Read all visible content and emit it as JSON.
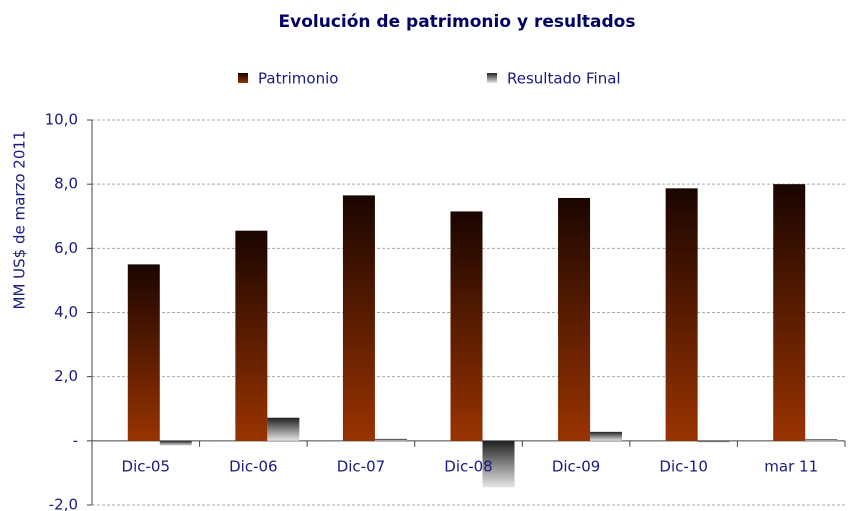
{
  "chart_data": {
    "type": "bar",
    "title": "Evolución de patrimonio y resultados",
    "y_label": "MM US$ de marzo 2011",
    "categories": [
      "Dic-05",
      "Dic-06",
      "Dic-07",
      "Dic-08",
      "Dic-09",
      "Dic-10",
      "mar 11"
    ],
    "series": [
      {
        "name": "Patrimonio",
        "color": "#993300",
        "values": [
          5.5,
          6.55,
          7.65,
          7.15,
          7.57,
          7.87,
          8.0
        ]
      },
      {
        "name": "Resultado Final",
        "color": "#e6e6e6",
        "values": [
          -0.15,
          0.72,
          0.06,
          -1.45,
          0.28,
          -0.05,
          0.05
        ]
      }
    ],
    "ylim": [
      -2,
      10
    ],
    "yticks": [
      {
        "value": -2,
        "label": "-2,0"
      },
      {
        "value": 0,
        "label": "-"
      },
      {
        "value": 2,
        "label": "2,0"
      },
      {
        "value": 4,
        "label": "4,0"
      },
      {
        "value": 6,
        "label": "6,0"
      },
      {
        "value": 8,
        "label": "8,0"
      },
      {
        "value": 10,
        "label": "10,0"
      }
    ],
    "grid": true
  }
}
